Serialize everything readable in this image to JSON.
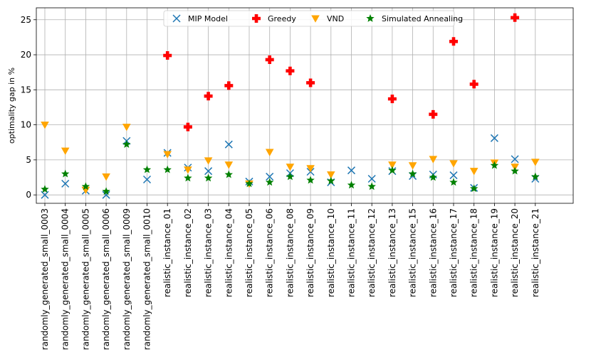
{
  "chart_data": {
    "type": "scatter",
    "title": "",
    "xlabel": "",
    "ylabel": "optimality gap in %",
    "ylim": [
      -1.2,
      26.7
    ],
    "yticks": [
      0,
      5,
      10,
      15,
      20,
      25
    ],
    "grid": true,
    "legend_position": "top-center",
    "categories": [
      "randomly_generated_small_0003",
      "randomly_generated_small_0004",
      "randomly_generated_small_0005",
      "randomly_generated_small_0006",
      "randomly_generated_small_0009",
      "randomly_generated_small_0010",
      "realistic_instance_01",
      "realistic_instance_02",
      "realistic_instance_03",
      "realistic_instance_04",
      "realistic_instance_05",
      "realistic_instance_06",
      "realistic_instance_08",
      "realistic_instance_09",
      "realistic_instance_10",
      "realistic_instance_11",
      "realistic_instance_12",
      "realistic_instance_13",
      "realistic_instance_15",
      "realistic_instance_16",
      "realistic_instance_17",
      "realistic_instance_18",
      "realistic_instance_19",
      "realistic_instance_20",
      "realistic_instance_21"
    ],
    "series": [
      {
        "name": "MIP Model",
        "marker": "x",
        "color": "#1f77b4",
        "values": [
          0.0,
          1.6,
          0.6,
          0.0,
          7.7,
          2.2,
          6.0,
          3.9,
          3.4,
          7.2,
          1.9,
          2.6,
          3.1,
          3.3,
          1.8,
          3.5,
          2.3,
          3.4,
          2.7,
          2.9,
          2.8,
          1.0,
          8.1,
          5.1,
          2.3
        ]
      },
      {
        "name": "Greedy",
        "marker": "plus",
        "color": "#ff0000",
        "values": [
          null,
          null,
          null,
          null,
          null,
          null,
          19.9,
          9.7,
          14.1,
          15.6,
          null,
          19.3,
          17.7,
          16.0,
          null,
          null,
          null,
          13.7,
          null,
          11.5,
          21.9,
          15.8,
          null,
          25.3,
          null
        ]
      },
      {
        "name": "VND",
        "marker": "triangle-down",
        "color": "#ffa500",
        "values": [
          10.0,
          6.3,
          0.7,
          2.6,
          9.7,
          null,
          5.8,
          3.6,
          4.9,
          4.3,
          1.6,
          6.1,
          4.0,
          3.8,
          2.9,
          null,
          null,
          4.3,
          4.2,
          5.1,
          4.5,
          3.4,
          4.6,
          4.0,
          4.7
        ]
      },
      {
        "name": "Simulated Annealing",
        "marker": "star",
        "color": "#008000",
        "values": [
          0.8,
          3.0,
          1.2,
          0.5,
          7.2,
          3.6,
          3.6,
          2.4,
          2.4,
          2.9,
          1.6,
          1.8,
          2.6,
          2.1,
          2.0,
          1.4,
          1.2,
          3.5,
          3.0,
          2.5,
          1.8,
          0.9,
          4.2,
          3.4,
          2.6
        ]
      }
    ]
  }
}
